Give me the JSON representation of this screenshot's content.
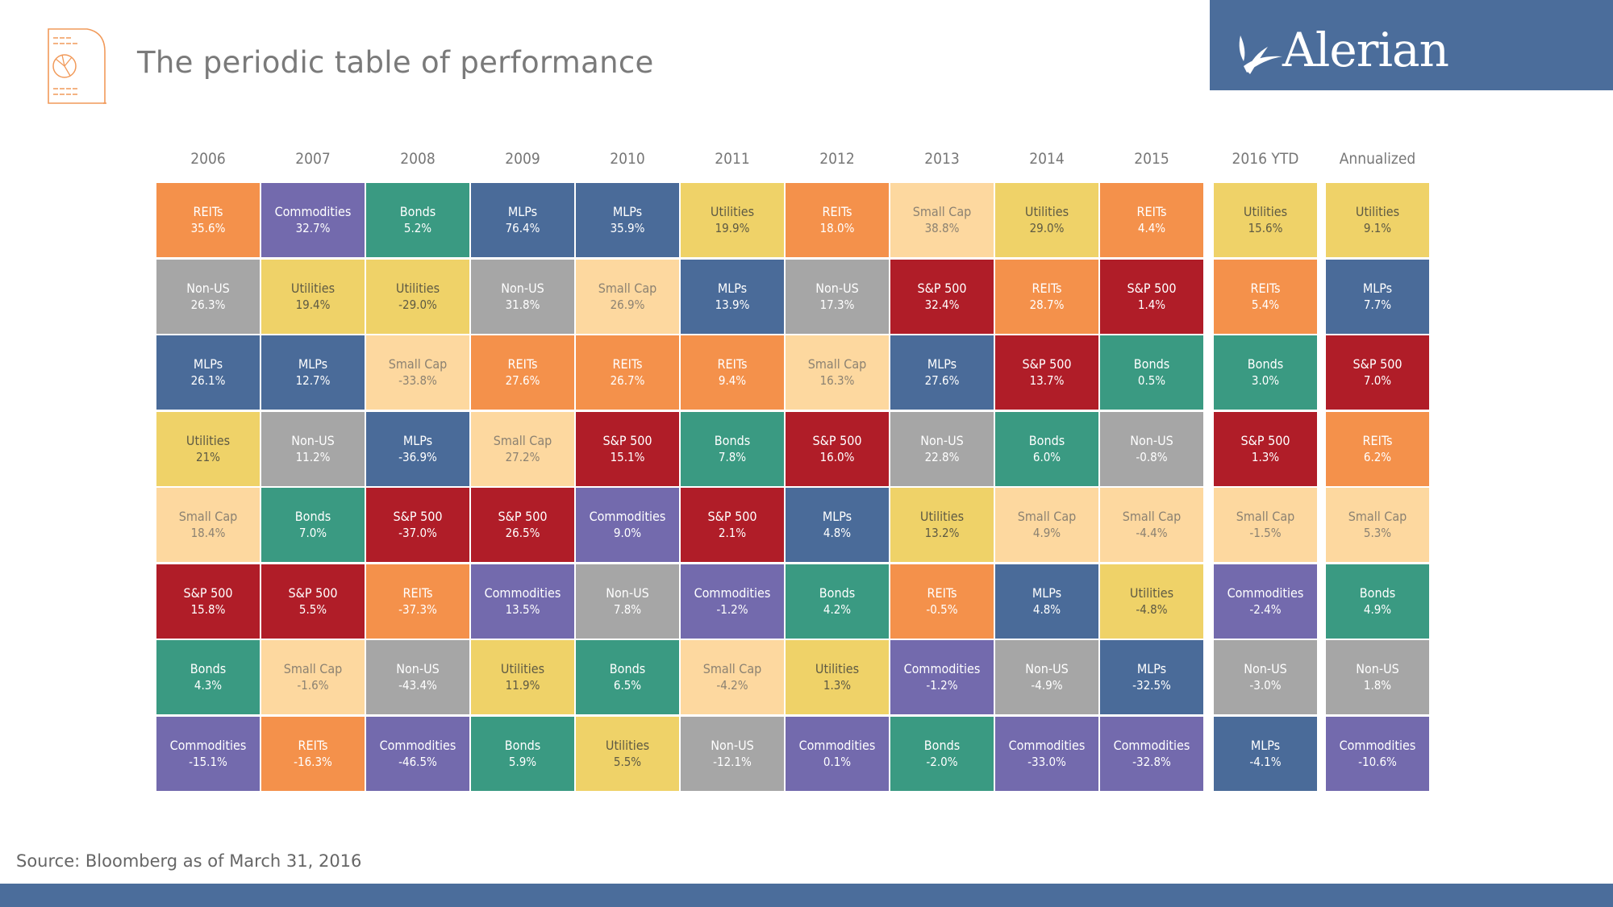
{
  "header": {
    "title": "The periodic table of performance",
    "brand": "Alerian"
  },
  "footer": {
    "source": "Source: Bloomberg as of March 31, 2016"
  },
  "colors": {
    "REITs": {
      "bg": "#f4914b",
      "fg": "#ffffff"
    },
    "Commodities": {
      "bg": "#736aad",
      "fg": "#ffffff"
    },
    "Bonds": {
      "bg": "#3a9a82",
      "fg": "#ffffff"
    },
    "MLPs": {
      "bg": "#4a6b99",
      "fg": "#ffffff"
    },
    "Utilities": {
      "bg": "#efd268",
      "fg": "#5e5a44"
    },
    "Non-US": {
      "bg": "#a6a6a6",
      "fg": "#ffffff"
    },
    "Small Cap": {
      "bg": "#fdd89f",
      "fg": "#8c8272"
    },
    "S&P 500": {
      "bg": "#b01d28",
      "fg": "#ffffff"
    }
  },
  "chart_data": {
    "type": "table",
    "title": "The periodic table of performance",
    "note": "Source: Bloomberg as of March 31, 2016",
    "columns": [
      {
        "label": "2006",
        "cells": [
          [
            "REITs",
            "35.6%"
          ],
          [
            "Non-US",
            "26.3%"
          ],
          [
            "MLPs",
            "26.1%"
          ],
          [
            "Utilities",
            "21%"
          ],
          [
            "Small Cap",
            "18.4%"
          ],
          [
            "S&P 500",
            "15.8%"
          ],
          [
            "Bonds",
            "4.3%"
          ],
          [
            "Commodities",
            "-15.1%"
          ]
        ]
      },
      {
        "label": "2007",
        "cells": [
          [
            "Commodities",
            "32.7%"
          ],
          [
            "Utilities",
            "19.4%"
          ],
          [
            "MLPs",
            "12.7%"
          ],
          [
            "Non-US",
            "11.2%"
          ],
          [
            "Bonds",
            "7.0%"
          ],
          [
            "S&P 500",
            "5.5%"
          ],
          [
            "Small Cap",
            "-1.6%"
          ],
          [
            "REITs",
            "-16.3%"
          ]
        ]
      },
      {
        "label": "2008",
        "cells": [
          [
            "Bonds",
            "5.2%"
          ],
          [
            "Utilities",
            "-29.0%"
          ],
          [
            "Small Cap",
            "-33.8%"
          ],
          [
            "MLPs",
            "-36.9%"
          ],
          [
            "S&P 500",
            "-37.0%"
          ],
          [
            "REITs",
            "-37.3%"
          ],
          [
            "Non-US",
            "-43.4%"
          ],
          [
            "Commodities",
            "-46.5%"
          ]
        ]
      },
      {
        "label": "2009",
        "cells": [
          [
            "MLPs",
            "76.4%"
          ],
          [
            "Non-US",
            "31.8%"
          ],
          [
            "REITs",
            "27.6%"
          ],
          [
            "Small Cap",
            "27.2%"
          ],
          [
            "S&P 500",
            "26.5%"
          ],
          [
            "Commodities",
            "13.5%"
          ],
          [
            "Utilities",
            "11.9%"
          ],
          [
            "Bonds",
            "5.9%"
          ]
        ]
      },
      {
        "label": "2010",
        "cells": [
          [
            "MLPs",
            "35.9%"
          ],
          [
            "Small Cap",
            "26.9%"
          ],
          [
            "REITs",
            "26.7%"
          ],
          [
            "S&P 500",
            "15.1%"
          ],
          [
            "Commodities",
            "9.0%"
          ],
          [
            "Non-US",
            "7.8%"
          ],
          [
            "Bonds",
            "6.5%"
          ],
          [
            "Utilities",
            "5.5%"
          ]
        ]
      },
      {
        "label": "2011",
        "cells": [
          [
            "Utilities",
            "19.9%"
          ],
          [
            "MLPs",
            "13.9%"
          ],
          [
            "REITs",
            "9.4%"
          ],
          [
            "Bonds",
            "7.8%"
          ],
          [
            "S&P 500",
            "2.1%"
          ],
          [
            "Commodities",
            "-1.2%"
          ],
          [
            "Small Cap",
            "-4.2%"
          ],
          [
            "Non-US",
            "-12.1%"
          ]
        ]
      },
      {
        "label": "2012",
        "cells": [
          [
            "REITs",
            "18.0%"
          ],
          [
            "Non-US",
            "17.3%"
          ],
          [
            "Small Cap",
            "16.3%"
          ],
          [
            "S&P 500",
            "16.0%"
          ],
          [
            "MLPs",
            "4.8%"
          ],
          [
            "Bonds",
            "4.2%"
          ],
          [
            "Utilities",
            "1.3%"
          ],
          [
            "Commodities",
            "0.1%"
          ]
        ]
      },
      {
        "label": "2013",
        "cells": [
          [
            "Small Cap",
            "38.8%"
          ],
          [
            "S&P 500",
            "32.4%"
          ],
          [
            "MLPs",
            "27.6%"
          ],
          [
            "Non-US",
            "22.8%"
          ],
          [
            "Utilities",
            "13.2%"
          ],
          [
            "REITs",
            "-0.5%"
          ],
          [
            "Commodities",
            "-1.2%"
          ],
          [
            "Bonds",
            "-2.0%"
          ]
        ]
      },
      {
        "label": "2014",
        "cells": [
          [
            "Utilities",
            "29.0%"
          ],
          [
            "REITs",
            "28.7%"
          ],
          [
            "S&P 500",
            "13.7%"
          ],
          [
            "Bonds",
            "6.0%"
          ],
          [
            "Small Cap",
            "4.9%"
          ],
          [
            "MLPs",
            "4.8%"
          ],
          [
            "Non-US",
            "-4.9%"
          ],
          [
            "Commodities",
            "-33.0%"
          ]
        ]
      },
      {
        "label": "2015",
        "cells": [
          [
            "REITs",
            "4.4%"
          ],
          [
            "S&P 500",
            "1.4%"
          ],
          [
            "Bonds",
            "0.5%"
          ],
          [
            "Non-US",
            "-0.8%"
          ],
          [
            "Small Cap",
            "-4.4%"
          ],
          [
            "Utilities",
            "-4.8%"
          ],
          [
            "MLPs",
            "-32.5%"
          ],
          [
            "Commodities",
            "-32.8%"
          ]
        ]
      },
      {
        "label": "2016 YTD",
        "cells": [
          [
            "Utilities",
            "15.6%"
          ],
          [
            "REITs",
            "5.4%"
          ],
          [
            "Bonds",
            "3.0%"
          ],
          [
            "S&P 500",
            "1.3%"
          ],
          [
            "Small Cap",
            "-1.5%"
          ],
          [
            "Commodities",
            "-2.4%"
          ],
          [
            "Non-US",
            "-3.0%"
          ],
          [
            "MLPs",
            "-4.1%"
          ]
        ]
      },
      {
        "label": "Annualized",
        "cells": [
          [
            "Utilities",
            "9.1%"
          ],
          [
            "MLPs",
            "7.7%"
          ],
          [
            "S&P 500",
            "7.0%"
          ],
          [
            "REITs",
            "6.2%"
          ],
          [
            "Small Cap",
            "5.3%"
          ],
          [
            "Bonds",
            "4.9%"
          ],
          [
            "Non-US",
            "1.8%"
          ],
          [
            "Commodities",
            "-10.6%"
          ]
        ]
      }
    ]
  }
}
